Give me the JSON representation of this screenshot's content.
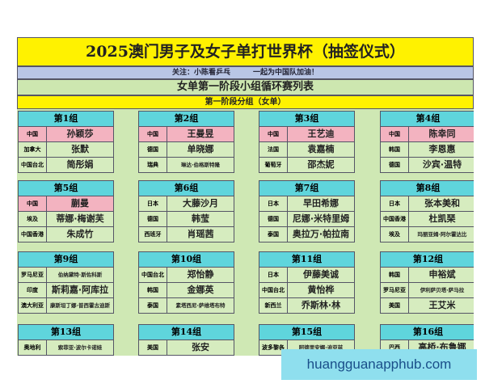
{
  "title": "2025澳门男子及女子单打世界杯（抽签仪式）",
  "follow": {
    "left": "关注：小陈看乒乓",
    "right": "一起为中国队加油！"
  },
  "stage_title": "女单第一阶段小组循环赛列表",
  "subtitle": "第一阶段分组（女单）",
  "colors": {
    "title_bg": "#fff200",
    "header_bg": "#5fd5dc",
    "china_row": "#f3b3c0",
    "sheet_bg": "#cfe8b4"
  },
  "groups": [
    {
      "name": "第1组",
      "rows": [
        {
          "c": "中国",
          "p": "孙颖莎",
          "cn": true
        },
        {
          "c": "加拿大",
          "p": "张默"
        },
        {
          "c": "中国台北",
          "p": "简彤娟"
        }
      ]
    },
    {
      "name": "第2组",
      "rows": [
        {
          "c": "中国",
          "p": "王曼昱",
          "cn": true
        },
        {
          "c": "德国",
          "p": "单晓娜"
        },
        {
          "c": "瑞典",
          "p": "琳达·伯格斯特隆",
          "sm": true
        }
      ]
    },
    {
      "name": "第3组",
      "rows": [
        {
          "c": "中国",
          "p": "王艺迪",
          "cn": true
        },
        {
          "c": "法国",
          "p": "袁嘉楠"
        },
        {
          "c": "葡萄牙",
          "p": "邵杰妮"
        }
      ]
    },
    {
      "name": "第4组",
      "rows": [
        {
          "c": "中国",
          "p": "陈幸同",
          "cn": true
        },
        {
          "c": "韩国",
          "p": "李恩惠"
        },
        {
          "c": "德国",
          "p": "沙宾·温特"
        }
      ]
    },
    {
      "name": "第5组",
      "rows": [
        {
          "c": "中国",
          "p": "蒯曼",
          "cn": true
        },
        {
          "c": "埃及",
          "p": "蒂娜·梅谢芙"
        },
        {
          "c": "中国香港",
          "p": "朱成竹"
        }
      ]
    },
    {
      "name": "第6组",
      "rows": [
        {
          "c": "日本",
          "p": "大藤沙月"
        },
        {
          "c": "德国",
          "p": "韩莹"
        },
        {
          "c": "西班牙",
          "p": "肖瑶茜"
        }
      ]
    },
    {
      "name": "第7组",
      "rows": [
        {
          "c": "日本",
          "p": "早田希娜"
        },
        {
          "c": "德国",
          "p": "尼娜·米特里姆"
        },
        {
          "c": "泰国",
          "p": "奥拉万·帕拉南"
        }
      ]
    },
    {
      "name": "第8组",
      "rows": [
        {
          "c": "日本",
          "p": "张本美和"
        },
        {
          "c": "中国香港",
          "p": "杜凯琹"
        },
        {
          "c": "埃及",
          "p": "玛丽亚姆·阿尔霍达比",
          "sm": true
        }
      ]
    },
    {
      "name": "第9组",
      "rows": [
        {
          "c": "罗马尼亚",
          "p": "伯纳黛特·斯佐科斯",
          "sm": true
        },
        {
          "c": "印度",
          "p": "斯莉嘉·阿库拉"
        },
        {
          "c": "澳大利亚",
          "p": "康斯坦丁娜·普西霍古迪斯",
          "sm": true
        }
      ]
    },
    {
      "name": "第10组",
      "rows": [
        {
          "c": "中国台北",
          "p": "郑怡静"
        },
        {
          "c": "韩国",
          "p": "金娜英"
        },
        {
          "c": "泰国",
          "p": "素塔西尼·萨维塔布特",
          "sm": true
        }
      ]
    },
    {
      "name": "第11组",
      "rows": [
        {
          "c": "日本",
          "p": "伊藤美诚"
        },
        {
          "c": "中国台北",
          "p": "黄怡桦"
        },
        {
          "c": "新西兰",
          "p": "乔斯林·林"
        }
      ]
    },
    {
      "name": "第12组",
      "rows": [
        {
          "c": "韩国",
          "p": "申裕斌"
        },
        {
          "c": "罗马尼亚",
          "p": "伊利萨贝塔·萨马拉",
          "sm": true
        },
        {
          "c": "美国",
          "p": "王艾米"
        }
      ]
    },
    {
      "name": "第13组",
      "rows": [
        {
          "c": "奥地利",
          "p": "索菲亚·波尔卡诺娃",
          "sm": true
        }
      ]
    },
    {
      "name": "第14组",
      "rows": [
        {
          "c": "美国",
          "p": "张安"
        }
      ]
    },
    {
      "name": "第15组",
      "rows": [
        {
          "c": "波多黎各",
          "p": "阿德里安娜·迪亚兹",
          "sm": true
        }
      ]
    },
    {
      "name": "第16组",
      "rows": [
        {
          "c": "巴西",
          "p": "高桥·布鲁娜"
        }
      ]
    }
  ],
  "watermark": "huangguanapphub.com"
}
